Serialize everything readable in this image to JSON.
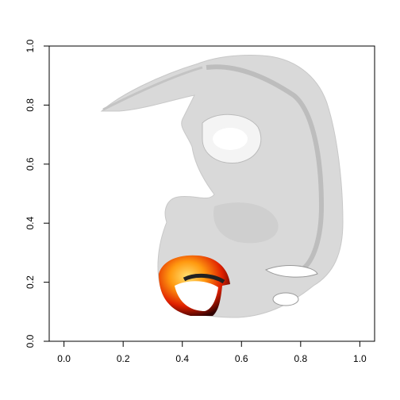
{
  "chart_data": {
    "type": "image",
    "xlim": [
      -0.05,
      1.05
    ],
    "ylim": [
      0,
      1
    ],
    "xticks": [
      {
        "value": 0,
        "label": "0.0"
      },
      0.2,
      0.4,
      0.6,
      0.8,
      {
        "value": 1,
        "label": "1.0"
      }
    ],
    "yticks": [
      {
        "value": 0,
        "label": "0.0"
      },
      0.2,
      0.4,
      0.6,
      0.8,
      {
        "value": 1,
        "label": "1.0"
      }
    ]
  }
}
